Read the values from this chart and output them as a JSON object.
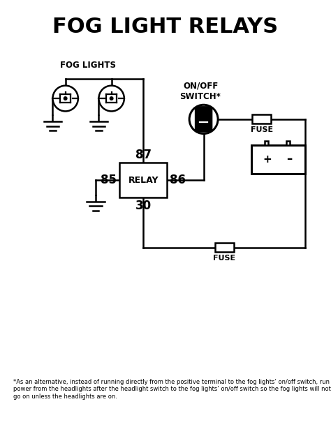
{
  "title": "FOG LIGHT RELAYS",
  "title_fontsize": 22,
  "title_fontweight": "bold",
  "bg_color": "#ffffff",
  "line_color": "#000000",
  "line_width": 1.8,
  "footnote": "*As an alternative, instead of running directly from the positive terminal to the fog lights’ on/off switch, run power from the headlights after the headlight switch to the fog lights’ on/off switch so the fog lights will not go on unless the headlights are on.",
  "footnote_fontsize": 6.0,
  "fog_lights_label": "FOG LIGHTS",
  "on_off_label": "ON/OFF\nSWITCH*",
  "fuse_label_top": "FUSE",
  "fuse_label_bottom": "FUSE",
  "relay_label": "RELAY",
  "terminal_85": "85",
  "terminal_86": "86",
  "terminal_87": "87",
  "terminal_30": "30",
  "battery_plus": "+",
  "battery_minus": "–"
}
